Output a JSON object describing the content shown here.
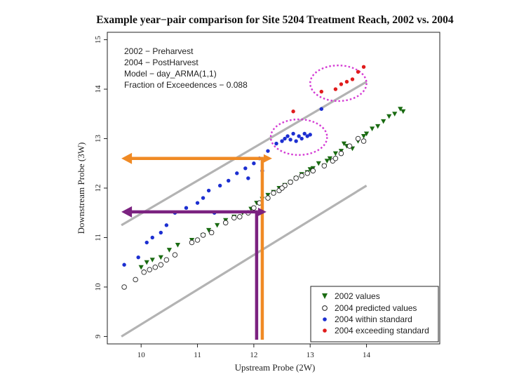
{
  "chart_data": {
    "type": "scatter",
    "title": "Example year−pair comparison for Site 5204 Treatment Reach, 2002 vs. 2004",
    "xlabel": "Upstream Probe (2W)",
    "ylabel": "Downstream Probe (3W)",
    "xlim": [
      9.4,
      15.3
    ],
    "ylim": [
      8.85,
      15.15
    ],
    "xticks": [
      "10",
      "11",
      "12",
      "13",
      "14"
    ],
    "yticks": [
      "9",
      "10",
      "11",
      "12",
      "13",
      "14",
      "15"
    ],
    "annotations": [
      "2002 − Preharvest",
      "2004 − PostHarvest",
      "Model − day_ARMA(1,1)",
      "Fraction of Exceedences − 0.088"
    ],
    "legend_position": "bottom-right",
    "legend": [
      "2002 values",
      "2004 predicted values",
      "2004 within standard",
      "2004 exceeding standard"
    ],
    "reference_lines": [
      {
        "x": [
          9.65,
          14.0
        ],
        "y": [
          11.25,
          14.15
        ]
      },
      {
        "x": [
          9.65,
          14.0
        ],
        "y": [
          9.0,
          12.05
        ]
      }
    ],
    "highlight_ellipses": [
      {
        "cx": 12.8,
        "cy": 13.03,
        "rx": 0.5,
        "ry": 0.36
      },
      {
        "cx": 13.5,
        "cy": 14.12,
        "rx": 0.5,
        "ry": 0.36
      }
    ],
    "guide_arrows": [
      {
        "color": "#f08a24",
        "x_start": 12.15,
        "x_end": 9.65,
        "y": 12.6
      },
      {
        "color": "#7b2280",
        "x_start": 12.05,
        "x_end": 9.65,
        "y": 11.52
      }
    ],
    "series": [
      {
        "name": "2002 values",
        "color": "#1a6b12",
        "marker": "triangle-down",
        "points": [
          [
            10.0,
            10.4
          ],
          [
            10.1,
            10.5
          ],
          [
            10.2,
            10.55
          ],
          [
            10.35,
            10.6
          ],
          [
            10.5,
            10.75
          ],
          [
            10.65,
            10.85
          ],
          [
            10.9,
            10.95
          ],
          [
            11.1,
            11.05
          ],
          [
            11.2,
            11.15
          ],
          [
            11.35,
            11.25
          ],
          [
            11.5,
            11.35
          ],
          [
            11.65,
            11.42
          ],
          [
            11.8,
            11.5
          ],
          [
            11.95,
            11.58
          ],
          [
            12.05,
            11.7
          ],
          [
            12.15,
            11.78
          ],
          [
            12.25,
            11.86
          ],
          [
            12.35,
            11.92
          ],
          [
            12.45,
            12.0
          ],
          [
            12.55,
            12.06
          ],
          [
            12.65,
            12.12
          ],
          [
            12.75,
            12.2
          ],
          [
            12.85,
            12.28
          ],
          [
            12.95,
            12.32
          ],
          [
            13.05,
            12.4
          ],
          [
            13.15,
            12.5
          ],
          [
            13.25,
            12.45
          ],
          [
            13.35,
            12.6
          ],
          [
            13.45,
            12.7
          ],
          [
            13.55,
            12.75
          ],
          [
            13.65,
            12.85
          ],
          [
            13.75,
            12.8
          ],
          [
            13.85,
            12.95
          ],
          [
            13.95,
            13.05
          ],
          [
            14.0,
            13.1
          ],
          [
            14.1,
            13.2
          ],
          [
            14.2,
            13.25
          ],
          [
            14.3,
            13.35
          ],
          [
            14.4,
            13.45
          ],
          [
            14.5,
            13.5
          ],
          [
            14.6,
            13.6
          ],
          [
            14.65,
            13.55
          ],
          [
            13.3,
            12.55
          ],
          [
            13.6,
            12.9
          ],
          [
            13.0,
            12.38
          ]
        ]
      },
      {
        "name": "2004 predicted values",
        "color": "#222222",
        "marker": "circle-open",
        "points": [
          [
            9.7,
            10.0
          ],
          [
            9.9,
            10.15
          ],
          [
            10.05,
            10.3
          ],
          [
            10.15,
            10.35
          ],
          [
            10.25,
            10.4
          ],
          [
            10.35,
            10.45
          ],
          [
            10.45,
            10.55
          ],
          [
            10.6,
            10.65
          ],
          [
            10.9,
            10.9
          ],
          [
            11.0,
            10.95
          ],
          [
            11.1,
            11.05
          ],
          [
            11.25,
            11.1
          ],
          [
            11.5,
            11.3
          ],
          [
            11.65,
            11.4
          ],
          [
            11.75,
            11.42
          ],
          [
            11.9,
            11.5
          ],
          [
            12.0,
            11.6
          ],
          [
            12.1,
            11.7
          ],
          [
            12.25,
            11.8
          ],
          [
            12.35,
            11.9
          ],
          [
            12.45,
            11.95
          ],
          [
            12.55,
            12.05
          ],
          [
            12.65,
            12.12
          ],
          [
            12.75,
            12.2
          ],
          [
            12.85,
            12.25
          ],
          [
            12.95,
            12.3
          ],
          [
            13.05,
            12.35
          ],
          [
            13.25,
            12.45
          ],
          [
            13.4,
            12.55
          ],
          [
            13.55,
            12.7
          ],
          [
            13.7,
            12.85
          ],
          [
            13.85,
            13.0
          ],
          [
            13.95,
            12.95
          ],
          [
            13.45,
            12.6
          ],
          [
            12.5,
            12.0
          ]
        ]
      },
      {
        "name": "2004 within standard",
        "color": "#1c2fd1",
        "marker": "circle-filled",
        "points": [
          [
            9.7,
            10.45
          ],
          [
            9.95,
            10.6
          ],
          [
            10.1,
            10.9
          ],
          [
            10.2,
            11.0
          ],
          [
            10.35,
            11.1
          ],
          [
            10.45,
            11.25
          ],
          [
            10.6,
            11.5
          ],
          [
            10.8,
            11.6
          ],
          [
            11.0,
            11.7
          ],
          [
            11.1,
            11.8
          ],
          [
            11.2,
            11.95
          ],
          [
            11.4,
            12.05
          ],
          [
            11.55,
            12.15
          ],
          [
            11.7,
            12.3
          ],
          [
            11.85,
            12.4
          ],
          [
            12.0,
            12.5
          ],
          [
            12.1,
            12.6
          ],
          [
            12.25,
            12.75
          ],
          [
            12.4,
            12.9
          ],
          [
            12.5,
            12.95
          ],
          [
            12.55,
            13.0
          ],
          [
            12.6,
            13.05
          ],
          [
            12.65,
            12.98
          ],
          [
            12.7,
            13.1
          ],
          [
            12.75,
            12.95
          ],
          [
            12.8,
            13.05
          ],
          [
            12.85,
            13.0
          ],
          [
            12.9,
            13.1
          ],
          [
            12.95,
            13.05
          ],
          [
            13.0,
            13.08
          ],
          [
            13.2,
            13.6
          ],
          [
            11.9,
            12.2
          ],
          [
            11.3,
            11.5
          ],
          [
            12.15,
            12.35
          ]
        ]
      },
      {
        "name": "2004 exceeding standard",
        "color": "#e01c1c",
        "marker": "circle-filled",
        "points": [
          [
            12.7,
            13.55
          ],
          [
            13.2,
            13.95
          ],
          [
            13.45,
            14.0
          ],
          [
            13.55,
            14.1
          ],
          [
            13.75,
            14.2
          ],
          [
            13.85,
            14.35
          ],
          [
            13.95,
            14.45
          ],
          [
            13.65,
            14.15
          ]
        ]
      }
    ]
  }
}
